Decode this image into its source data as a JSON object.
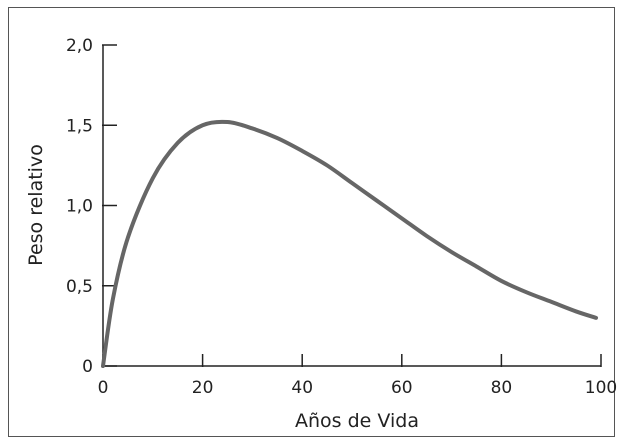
{
  "chart_data": {
    "type": "line",
    "title": "",
    "xlabel": "Años de Vida",
    "ylabel": "Peso relativo",
    "xlim": [
      0,
      100
    ],
    "ylim": [
      0,
      2.0
    ],
    "x_ticks": [
      0,
      20,
      40,
      60,
      80,
      100
    ],
    "x_tick_labels": [
      "0",
      "20",
      "40",
      "60",
      "80",
      "100"
    ],
    "y_ticks": [
      0,
      0.5,
      1.0,
      1.5,
      2.0
    ],
    "y_tick_labels": [
      "0",
      "0,5",
      "1,0",
      "1,5",
      "2,0"
    ],
    "grid": false,
    "colors": {
      "line": "#666666",
      "axis": "#222222"
    },
    "series": [
      {
        "x": [
          0,
          2,
          5,
          10,
          15,
          20,
          25,
          30,
          35,
          40,
          45,
          50,
          55,
          60,
          65,
          70,
          75,
          80,
          85,
          90,
          95,
          99
        ],
        "y": [
          0,
          0.42,
          0.8,
          1.17,
          1.39,
          1.5,
          1.52,
          1.48,
          1.42,
          1.34,
          1.25,
          1.14,
          1.03,
          0.92,
          0.81,
          0.71,
          0.62,
          0.53,
          0.46,
          0.4,
          0.34,
          0.3
        ]
      }
    ]
  }
}
